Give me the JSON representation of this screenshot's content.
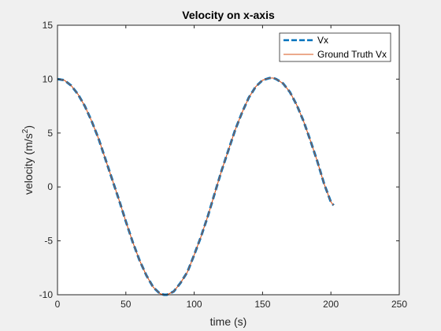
{
  "chart_data": {
    "type": "line",
    "title": "Velocity on x-axis",
    "xlabel": "time (s)",
    "ylabel_main": "velocity (m/s",
    "ylabel_exp": "2",
    "ylabel_close": ")",
    "xlim": [
      0,
      250
    ],
    "ylim": [
      -10,
      15
    ],
    "xticks": [
      0,
      50,
      100,
      150,
      200,
      250
    ],
    "yticks": [
      -10,
      -5,
      0,
      5,
      10,
      15
    ],
    "grid": false,
    "legend_position": "top-right",
    "series": [
      {
        "name": "Vx",
        "style": "dashed",
        "color": "#0072BD",
        "x": [
          0,
          5,
          10,
          15,
          20,
          25,
          30,
          35,
          40,
          45,
          50,
          55,
          60,
          65,
          70,
          75,
          78,
          80,
          85,
          90,
          95,
          100,
          105,
          110,
          115,
          120,
          125,
          130,
          135,
          140,
          145,
          150,
          155,
          158,
          160,
          165,
          170,
          175,
          180,
          185,
          190,
          195,
          200,
          202
        ],
        "y": [
          10.0,
          9.9,
          9.4,
          8.6,
          7.5,
          6.1,
          4.5,
          2.6,
          0.7,
          -1.2,
          -3.2,
          -5.1,
          -6.8,
          -8.2,
          -9.3,
          -9.9,
          -10.0,
          -10.0,
          -9.7,
          -8.9,
          -7.9,
          -6.3,
          -4.6,
          -2.7,
          -0.6,
          1.5,
          3.4,
          5.3,
          6.9,
          8.3,
          9.3,
          9.9,
          10.1,
          10.1,
          10.0,
          9.6,
          8.8,
          7.6,
          6.1,
          4.3,
          2.4,
          0.3,
          -1.4,
          -1.7
        ]
      },
      {
        "name": "Ground Truth Vx",
        "style": "solid",
        "color": "#D95319",
        "x": [
          0,
          5,
          10,
          15,
          20,
          25,
          30,
          35,
          40,
          45,
          50,
          55,
          60,
          65,
          70,
          75,
          78,
          80,
          85,
          90,
          95,
          100,
          105,
          110,
          115,
          120,
          125,
          130,
          135,
          140,
          145,
          150,
          155,
          158,
          160,
          165,
          170,
          175,
          180,
          185,
          190,
          195,
          200,
          202
        ],
        "y": [
          10.0,
          9.9,
          9.4,
          8.6,
          7.5,
          6.1,
          4.5,
          2.6,
          0.7,
          -1.2,
          -3.2,
          -5.1,
          -6.8,
          -8.2,
          -9.3,
          -9.9,
          -10.0,
          -10.0,
          -9.7,
          -8.9,
          -7.9,
          -6.3,
          -4.6,
          -2.7,
          -0.6,
          1.5,
          3.4,
          5.3,
          6.9,
          8.3,
          9.3,
          9.9,
          10.1,
          10.1,
          10.0,
          9.6,
          8.8,
          7.6,
          6.1,
          4.3,
          2.4,
          0.3,
          -1.4,
          -1.7
        ]
      }
    ]
  },
  "colors": {
    "figure_background": "#f0f0f0",
    "axes_background": "#ffffff",
    "axis_color": "#262626"
  }
}
